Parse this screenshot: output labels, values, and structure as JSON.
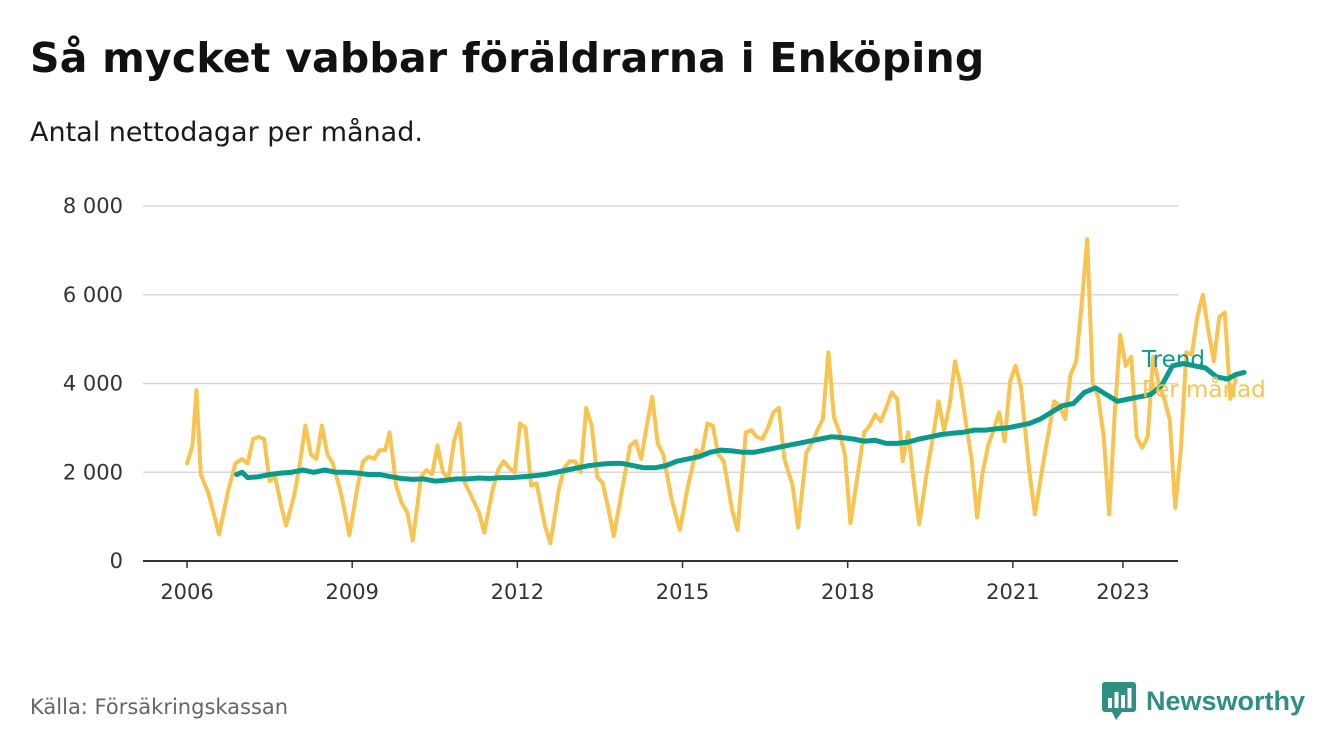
{
  "title": "Så mycket vabbar föräldrarna i Enköping",
  "subtitle": "Antal nettodagar per månad.",
  "source": "Källa: Försäkringskassan",
  "brand": {
    "name": "Newsworthy",
    "icon": "bar-chart-badge-icon",
    "color": "#2f8f82"
  },
  "chart_data": {
    "type": "line",
    "title": "Så mycket vabbar föräldrarna i Enköping",
    "subtitle": "Antal nettodagar per månad.",
    "xlabel": "",
    "ylabel": "",
    "xlim": [
      2005.2,
      2024.0
    ],
    "ylim": [
      0,
      8000
    ],
    "y_ticks": [
      0,
      2000,
      4000,
      6000,
      8000
    ],
    "y_tick_labels": [
      "0",
      "2 000",
      "4 000",
      "6 000",
      "8 000"
    ],
    "x_ticks": [
      2006,
      2009,
      2012,
      2015,
      2018,
      2021,
      2023
    ],
    "x_tick_labels": [
      "2006",
      "2009",
      "2012",
      "2015",
      "2018",
      "2021",
      "2023"
    ],
    "grid": true,
    "legend": "right-end labels",
    "series": [
      {
        "name": "Per månad",
        "color": "#f8c44f",
        "points": [
          [
            2006.0,
            2200
          ],
          [
            2006.1,
            2600
          ],
          [
            2006.17,
            3850
          ],
          [
            2006.25,
            1950
          ],
          [
            2006.38,
            1550
          ],
          [
            2006.5,
            1000
          ],
          [
            2006.58,
            600
          ],
          [
            2006.75,
            1600
          ],
          [
            2006.88,
            2200
          ],
          [
            2007.0,
            2300
          ],
          [
            2007.1,
            2200
          ],
          [
            2007.2,
            2750
          ],
          [
            2007.3,
            2800
          ],
          [
            2007.4,
            2750
          ],
          [
            2007.5,
            1800
          ],
          [
            2007.6,
            1900
          ],
          [
            2007.7,
            1300
          ],
          [
            2007.8,
            800
          ],
          [
            2007.95,
            1500
          ],
          [
            2008.05,
            2200
          ],
          [
            2008.15,
            3050
          ],
          [
            2008.25,
            2400
          ],
          [
            2008.35,
            2300
          ],
          [
            2008.45,
            3050
          ],
          [
            2008.55,
            2400
          ],
          [
            2008.65,
            2200
          ],
          [
            2008.8,
            1500
          ],
          [
            2008.95,
            580
          ],
          [
            2009.1,
            1700
          ],
          [
            2009.2,
            2250
          ],
          [
            2009.3,
            2350
          ],
          [
            2009.4,
            2300
          ],
          [
            2009.5,
            2500
          ],
          [
            2009.6,
            2500
          ],
          [
            2009.68,
            2900
          ],
          [
            2009.8,
            1700
          ],
          [
            2009.9,
            1300
          ],
          [
            2010.0,
            1100
          ],
          [
            2010.1,
            460
          ],
          [
            2010.25,
            1900
          ],
          [
            2010.35,
            2050
          ],
          [
            2010.45,
            1950
          ],
          [
            2010.55,
            2600
          ],
          [
            2010.65,
            2000
          ],
          [
            2010.75,
            1850
          ],
          [
            2010.85,
            2700
          ],
          [
            2010.95,
            3100
          ],
          [
            2011.05,
            1750
          ],
          [
            2011.15,
            1500
          ],
          [
            2011.3,
            1100
          ],
          [
            2011.4,
            640
          ],
          [
            2011.55,
            1600
          ],
          [
            2011.65,
            2050
          ],
          [
            2011.75,
            2250
          ],
          [
            2011.85,
            2100
          ],
          [
            2011.95,
            2000
          ],
          [
            2012.05,
            3100
          ],
          [
            2012.15,
            3000
          ],
          [
            2012.25,
            1700
          ],
          [
            2012.35,
            1750
          ],
          [
            2012.5,
            800
          ],
          [
            2012.6,
            400
          ],
          [
            2012.75,
            1600
          ],
          [
            2012.85,
            2100
          ],
          [
            2012.95,
            2250
          ],
          [
            2013.05,
            2250
          ],
          [
            2013.15,
            2000
          ],
          [
            2013.25,
            3450
          ],
          [
            2013.35,
            3050
          ],
          [
            2013.45,
            1900
          ],
          [
            2013.55,
            1750
          ],
          [
            2013.65,
            1200
          ],
          [
            2013.75,
            560
          ],
          [
            2013.9,
            1600
          ],
          [
            2014.05,
            2600
          ],
          [
            2014.15,
            2700
          ],
          [
            2014.25,
            2300
          ],
          [
            2014.35,
            3050
          ],
          [
            2014.45,
            3700
          ],
          [
            2014.55,
            2650
          ],
          [
            2014.65,
            2400
          ],
          [
            2014.8,
            1400
          ],
          [
            2014.95,
            700
          ],
          [
            2015.1,
            1700
          ],
          [
            2015.25,
            2500
          ],
          [
            2015.35,
            2400
          ],
          [
            2015.45,
            3100
          ],
          [
            2015.55,
            3050
          ],
          [
            2015.65,
            2400
          ],
          [
            2015.75,
            2250
          ],
          [
            2015.9,
            1150
          ],
          [
            2016.0,
            700
          ],
          [
            2016.15,
            2900
          ],
          [
            2016.25,
            2950
          ],
          [
            2016.35,
            2800
          ],
          [
            2016.45,
            2750
          ],
          [
            2016.55,
            3000
          ],
          [
            2016.65,
            3350
          ],
          [
            2016.75,
            3450
          ],
          [
            2016.85,
            2300
          ],
          [
            2017.0,
            1700
          ],
          [
            2017.1,
            750
          ],
          [
            2017.25,
            2450
          ],
          [
            2017.35,
            2650
          ],
          [
            2017.45,
            2950
          ],
          [
            2017.55,
            3200
          ],
          [
            2017.65,
            4700
          ],
          [
            2017.75,
            3250
          ],
          [
            2017.85,
            2900
          ],
          [
            2017.95,
            2400
          ],
          [
            2018.05,
            850
          ],
          [
            2018.2,
            2100
          ],
          [
            2018.3,
            2900
          ],
          [
            2018.4,
            3050
          ],
          [
            2018.5,
            3300
          ],
          [
            2018.6,
            3150
          ],
          [
            2018.7,
            3450
          ],
          [
            2018.8,
            3800
          ],
          [
            2018.9,
            3650
          ],
          [
            2019.0,
            2250
          ],
          [
            2019.1,
            2900
          ],
          [
            2019.2,
            1800
          ],
          [
            2019.3,
            830
          ],
          [
            2019.45,
            2100
          ],
          [
            2019.55,
            2800
          ],
          [
            2019.65,
            3600
          ],
          [
            2019.75,
            2950
          ],
          [
            2019.85,
            3500
          ],
          [
            2019.95,
            4500
          ],
          [
            2020.05,
            3950
          ],
          [
            2020.15,
            3100
          ],
          [
            2020.25,
            2300
          ],
          [
            2020.35,
            980
          ],
          [
            2020.45,
            2000
          ],
          [
            2020.55,
            2600
          ],
          [
            2020.65,
            2950
          ],
          [
            2020.75,
            3350
          ],
          [
            2020.85,
            2700
          ],
          [
            2020.95,
            4050
          ],
          [
            2021.05,
            4400
          ],
          [
            2021.15,
            3900
          ],
          [
            2021.3,
            2000
          ],
          [
            2021.4,
            1050
          ],
          [
            2021.55,
            2200
          ],
          [
            2021.65,
            2900
          ],
          [
            2021.75,
            3600
          ],
          [
            2021.85,
            3500
          ],
          [
            2021.95,
            3200
          ],
          [
            2022.05,
            4200
          ],
          [
            2022.15,
            4500
          ],
          [
            2022.25,
            5800
          ],
          [
            2022.35,
            7250
          ],
          [
            2022.45,
            4000
          ],
          [
            2022.55,
            3700
          ],
          [
            2022.65,
            2800
          ],
          [
            2022.75,
            1050
          ],
          [
            2022.85,
            3300
          ],
          [
            2022.95,
            5100
          ],
          [
            2023.05,
            4400
          ],
          [
            2023.15,
            4600
          ],
          [
            2023.25,
            2800
          ],
          [
            2023.35,
            2550
          ],
          [
            2023.45,
            2800
          ],
          [
            2023.55,
            4600
          ],
          [
            2023.65,
            4000
          ],
          [
            2023.75,
            3650
          ],
          [
            2023.85,
            3200
          ],
          [
            2023.95,
            1200
          ],
          [
            2024.05,
            2500
          ],
          [
            2024.15,
            4700
          ],
          [
            2024.25,
            4650
          ],
          [
            2024.35,
            5500
          ],
          [
            2024.45,
            6000
          ],
          [
            2024.55,
            5200
          ],
          [
            2024.65,
            4500
          ],
          [
            2024.75,
            5500
          ],
          [
            2024.85,
            5600
          ],
          [
            2024.95,
            3650
          ],
          [
            2025.05,
            4100
          ]
        ]
      },
      {
        "name": "Trend",
        "color": "#0a9a8b",
        "points": [
          [
            2006.9,
            1950
          ],
          [
            2007.0,
            2000
          ],
          [
            2007.1,
            1880
          ],
          [
            2007.3,
            1900
          ],
          [
            2007.5,
            1950
          ],
          [
            2007.7,
            1980
          ],
          [
            2007.9,
            2000
          ],
          [
            2008.1,
            2050
          ],
          [
            2008.3,
            2000
          ],
          [
            2008.5,
            2050
          ],
          [
            2008.7,
            2000
          ],
          [
            2008.9,
            2000
          ],
          [
            2009.1,
            1980
          ],
          [
            2009.3,
            1950
          ],
          [
            2009.5,
            1950
          ],
          [
            2009.7,
            1900
          ],
          [
            2009.9,
            1860
          ],
          [
            2010.1,
            1840
          ],
          [
            2010.3,
            1850
          ],
          [
            2010.5,
            1800
          ],
          [
            2010.7,
            1820
          ],
          [
            2010.9,
            1850
          ],
          [
            2011.1,
            1850
          ],
          [
            2011.3,
            1870
          ],
          [
            2011.5,
            1860
          ],
          [
            2011.7,
            1880
          ],
          [
            2011.9,
            1880
          ],
          [
            2012.1,
            1900
          ],
          [
            2012.3,
            1920
          ],
          [
            2012.5,
            1950
          ],
          [
            2012.7,
            2000
          ],
          [
            2012.9,
            2050
          ],
          [
            2013.1,
            2100
          ],
          [
            2013.3,
            2150
          ],
          [
            2013.5,
            2180
          ],
          [
            2013.7,
            2200
          ],
          [
            2013.9,
            2200
          ],
          [
            2014.1,
            2150
          ],
          [
            2014.3,
            2100
          ],
          [
            2014.5,
            2100
          ],
          [
            2014.7,
            2150
          ],
          [
            2014.9,
            2250
          ],
          [
            2015.1,
            2300
          ],
          [
            2015.3,
            2350
          ],
          [
            2015.5,
            2450
          ],
          [
            2015.7,
            2500
          ],
          [
            2015.9,
            2480
          ],
          [
            2016.1,
            2450
          ],
          [
            2016.3,
            2450
          ],
          [
            2016.5,
            2500
          ],
          [
            2016.7,
            2550
          ],
          [
            2016.9,
            2600
          ],
          [
            2017.1,
            2650
          ],
          [
            2017.3,
            2700
          ],
          [
            2017.5,
            2750
          ],
          [
            2017.7,
            2800
          ],
          [
            2017.9,
            2780
          ],
          [
            2018.1,
            2750
          ],
          [
            2018.3,
            2700
          ],
          [
            2018.5,
            2720
          ],
          [
            2018.7,
            2650
          ],
          [
            2018.9,
            2650
          ],
          [
            2019.1,
            2680
          ],
          [
            2019.3,
            2750
          ],
          [
            2019.5,
            2800
          ],
          [
            2019.7,
            2850
          ],
          [
            2019.9,
            2880
          ],
          [
            2020.1,
            2900
          ],
          [
            2020.3,
            2950
          ],
          [
            2020.5,
            2950
          ],
          [
            2020.7,
            2980
          ],
          [
            2020.9,
            3000
          ],
          [
            2021.1,
            3050
          ],
          [
            2021.3,
            3100
          ],
          [
            2021.5,
            3200
          ],
          [
            2021.7,
            3350
          ],
          [
            2021.9,
            3500
          ],
          [
            2022.1,
            3550
          ],
          [
            2022.3,
            3800
          ],
          [
            2022.5,
            3900
          ],
          [
            2022.7,
            3750
          ],
          [
            2022.9,
            3600
          ],
          [
            2023.1,
            3650
          ],
          [
            2023.3,
            3700
          ],
          [
            2023.5,
            3750
          ],
          [
            2023.7,
            3950
          ],
          [
            2023.9,
            4400
          ],
          [
            2024.1,
            4450
          ],
          [
            2024.3,
            4400
          ],
          [
            2024.5,
            4350
          ],
          [
            2024.7,
            4150
          ],
          [
            2024.9,
            4100
          ],
          [
            2025.05,
            4200
          ],
          [
            2025.2,
            4250
          ]
        ]
      }
    ]
  }
}
